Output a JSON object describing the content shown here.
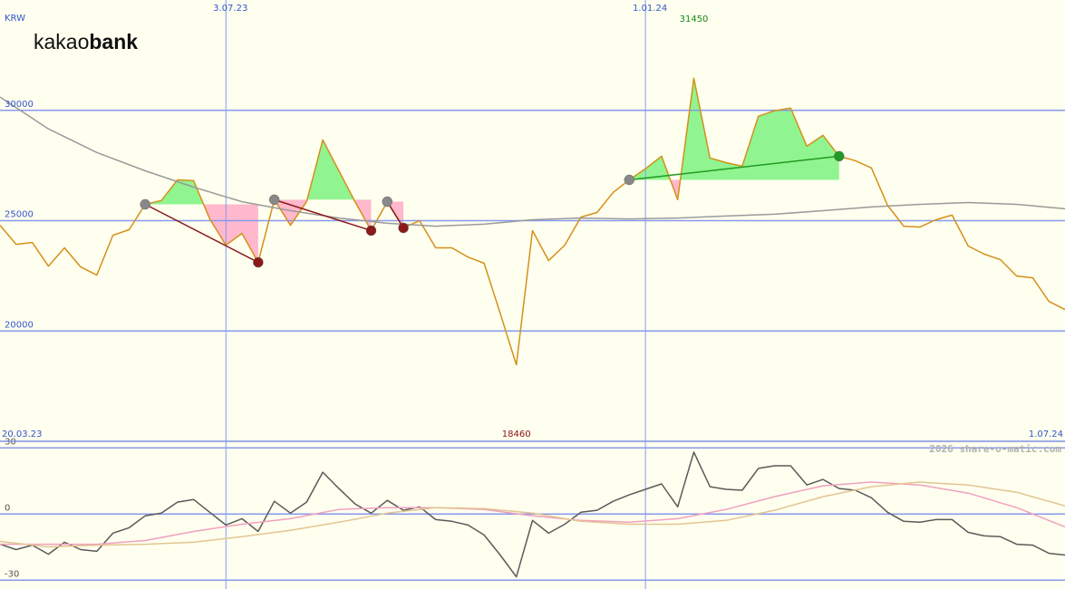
{
  "chart_data": [
    {
      "type": "line",
      "unit": "KRW",
      "logo_regular": "kakao",
      "logo_bold": "bank",
      "xlim": [
        0,
        66
      ],
      "xticks": [
        {
          "value": 0,
          "label": "20.03.23"
        },
        {
          "value": 14,
          "label": "3.07.23"
        },
        {
          "value": 40,
          "label": "1.01.24"
        },
        {
          "value": 66,
          "label": "1.07.24"
        }
      ],
      "ylim": [
        15000,
        35000
      ],
      "yticks": [
        20000,
        25000,
        30000
      ],
      "grid": true,
      "max_color": "#118811",
      "min_color": "#881111",
      "series": [
        {
          "color": "#d4901a",
          "values": [
            24790,
            23930,
            24010,
            22940,
            23770,
            22900,
            22530,
            24340,
            24590,
            25740,
            25910,
            26850,
            26810,
            25080,
            23890,
            24420,
            23110,
            25950,
            24790,
            25860,
            28660,
            27260,
            25860,
            24550,
            25860,
            24670,
            25000,
            23770,
            23770,
            23350,
            23070,
            20800,
            18460,
            24550,
            23190,
            23890,
            25160,
            25370,
            26280,
            26850,
            27350,
            27920,
            25950,
            31450,
            27840,
            27630,
            27470,
            29730,
            29980,
            30100,
            28370,
            28870,
            27920,
            27720,
            27390,
            25700,
            24750,
            24710,
            25040,
            25250,
            23850,
            23480,
            23230,
            22490,
            22410,
            21340,
            20970
          ]
        },
        {
          "color": "#9a9a9a",
          "x": [
            0,
            3,
            6,
            9,
            12,
            15,
            18,
            21,
            24,
            27,
            30,
            33,
            36,
            39,
            42,
            45,
            48,
            51,
            54,
            57,
            60,
            63,
            66
          ],
          "values": [
            30600,
            29160,
            28090,
            27260,
            26520,
            25860,
            25450,
            25120,
            24880,
            24750,
            24840,
            25040,
            25120,
            25080,
            25120,
            25210,
            25290,
            25450,
            25620,
            25740,
            25820,
            25740,
            25540
          ]
        }
      ],
      "trend_lines": [
        {
          "color": "#8b1a1a",
          "x": [
            9,
            16
          ],
          "values": [
            25740,
            23110
          ]
        },
        {
          "color": "#8b1a1a",
          "x": [
            17,
            23
          ],
          "values": [
            25950,
            24550
          ]
        },
        {
          "color": "#8b1a1a",
          "x": [
            24,
            25
          ],
          "values": [
            25860,
            24670
          ]
        },
        {
          "color": "#229922",
          "x": [
            39,
            52
          ],
          "values": [
            26850,
            27920
          ]
        }
      ]
    },
    {
      "type": "line",
      "credit": "2026 share-o-matic.com",
      "xlim": [
        0,
        66
      ],
      "ylim": [
        -34,
        33
      ],
      "yticks": [
        30,
        0,
        -30
      ],
      "grid": true,
      "series": [
        {
          "color": "#5a5a5a",
          "values": [
            -13.7,
            -16.1,
            -14.1,
            -18.2,
            -12.8,
            -16.1,
            -16.9,
            -8.7,
            -6.2,
            -0.8,
            0.4,
            5.4,
            6.6,
            0.8,
            -5.0,
            -2.1,
            -7.9,
            5.8,
            0.4,
            5.4,
            19.0,
            11.6,
            4.6,
            0.4,
            6.2,
            1.7,
            3.3,
            -2.5,
            -3.3,
            -5.0,
            -9.5,
            -18.6,
            -28.5,
            -2.9,
            -8.7,
            -4.6,
            0.8,
            1.7,
            5.8,
            8.7,
            11.2,
            13.7,
            3.3,
            28.1,
            12.4,
            11.2,
            10.8,
            20.7,
            21.9,
            21.9,
            13.2,
            15.7,
            11.6,
            10.8,
            7.4,
            0.8,
            -3.3,
            -3.7,
            -2.5,
            -2.5,
            -8.3,
            -9.9,
            -10.3,
            -13.7,
            -14.1,
            -17.8,
            -18.6
          ]
        },
        {
          "color": "#f0a0c0",
          "x": [
            0,
            3,
            6,
            9,
            12,
            15,
            18,
            21,
            24,
            27,
            30,
            33,
            36,
            39,
            42,
            45,
            48,
            51,
            54,
            57,
            60,
            63,
            66
          ],
          "values": [
            -13.7,
            -13.7,
            -13.7,
            -12.0,
            -7.9,
            -4.6,
            -2.1,
            2.1,
            2.9,
            2.9,
            2.1,
            -0.8,
            -2.9,
            -3.7,
            -2.1,
            2.1,
            7.9,
            12.8,
            14.5,
            13.2,
            9.5,
            2.9,
            -5.8
          ]
        },
        {
          "color": "#e2c592",
          "x": [
            0,
            3,
            6,
            9,
            12,
            15,
            18,
            21,
            24,
            27,
            30,
            33,
            36,
            39,
            42,
            45,
            48,
            51,
            54,
            57,
            60,
            63,
            66
          ],
          "values": [
            -12.4,
            -14.9,
            -14.1,
            -13.7,
            -12.8,
            -10.3,
            -7.4,
            -3.7,
            0.4,
            2.9,
            2.5,
            0.4,
            -3.3,
            -4.6,
            -4.6,
            -2.9,
            1.7,
            7.9,
            12.4,
            14.5,
            13.2,
            9.9,
            3.7
          ]
        }
      ]
    }
  ]
}
